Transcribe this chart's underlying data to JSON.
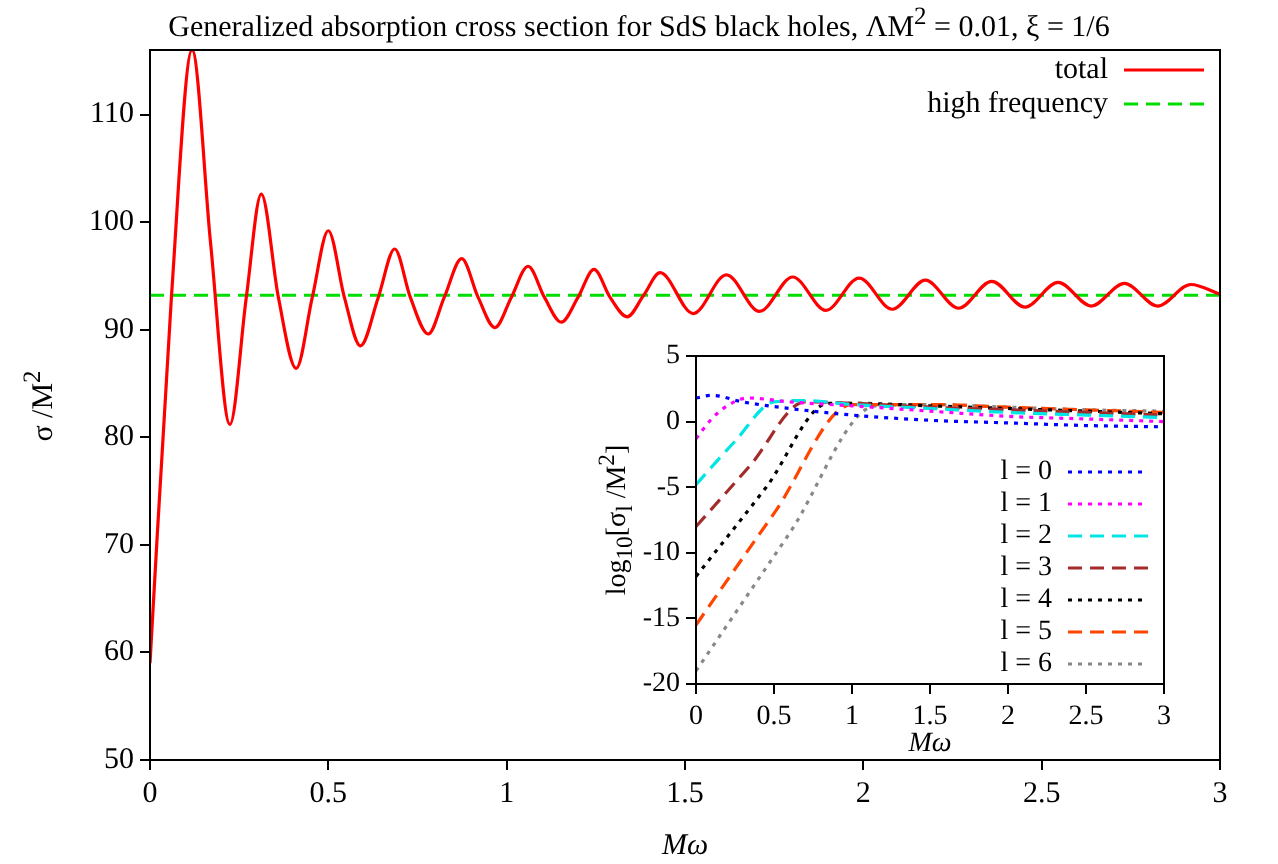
{
  "chart_data": [
    {
      "type": "line",
      "title": "Generalized absorption cross section for SdS black holes, ΛM$^{2}$ = 0.01, ξ = 1/6",
      "xlabel": "Mω",
      "ylabel": "σ /M$^{2}$",
      "xlim": [
        0,
        3
      ],
      "xticks": [
        0,
        0.5,
        1,
        1.5,
        2,
        2.5,
        3
      ],
      "ylim": [
        50,
        116
      ],
      "yticks": [
        50,
        60,
        70,
        80,
        90,
        100,
        110
      ],
      "legend": "top right",
      "series": [
        {
          "name": "total",
          "color": "#ff0000",
          "line_style": "solid",
          "x": [
            0,
            0.06,
            0.118,
            0.17,
            0.224,
            0.27,
            0.312,
            0.36,
            0.41,
            0.455,
            0.5,
            0.545,
            0.59,
            0.64,
            0.686,
            0.73,
            0.78,
            0.825,
            0.874,
            0.92,
            0.967,
            1.013,
            1.06,
            1.106,
            1.153,
            1.2,
            1.245,
            1.29,
            1.338,
            1.384,
            1.43,
            1.523,
            1.616,
            1.709,
            1.802,
            1.895,
            1.988,
            2.081,
            2.174,
            2.267,
            2.36,
            2.453,
            2.546,
            2.639,
            2.732,
            2.825,
            2.918,
            3
          ],
          "values": [
            59,
            93,
            116,
            98,
            81.2,
            93,
            102.6,
            93,
            86.4,
            93,
            99.2,
            93,
            88.5,
            93,
            97.5,
            93,
            89.6,
            93,
            96.6,
            93,
            90.2,
            93,
            95.9,
            93,
            90.7,
            93,
            95.6,
            93,
            91.2,
            93.2,
            95.3,
            91.5,
            95.1,
            91.7,
            94.9,
            91.8,
            94.8,
            91.9,
            94.6,
            92,
            94.5,
            92.1,
            94.4,
            92.2,
            94.3,
            92.2,
            94.2,
            93.3
          ]
        },
        {
          "name": "high frequency",
          "color": "#00dd00",
          "line_style": "dashed",
          "x": [
            0,
            3
          ],
          "values": [
            93.2,
            93.2
          ]
        }
      ]
    },
    {
      "type": "line",
      "xlabel": "Mω",
      "ylabel": "log$_{10}$[σ$_{l}$ /M$^{2}$]",
      "xlim": [
        0,
        3
      ],
      "xticks": [
        0,
        0.5,
        1,
        1.5,
        2,
        2.5,
        3
      ],
      "ylim": [
        -20,
        5
      ],
      "yticks": [
        -20,
        -15,
        -10,
        -5,
        0,
        5
      ],
      "legend": "bottom right",
      "series": [
        {
          "name": "l = 0",
          "color": "#0000ff",
          "line_style": "dotted",
          "x": [
            0,
            0.1,
            0.3,
            0.6,
            1,
            1.5,
            2,
            2.5,
            3
          ],
          "values": [
            1.8,
            2,
            1.5,
            1,
            0.5,
            0.1,
            -0.1,
            -0.3,
            -0.4
          ]
        },
        {
          "name": "l = 1",
          "color": "#ff00ff",
          "line_style": "dotted",
          "x": [
            0,
            0.1,
            0.2,
            0.33,
            0.6,
            1,
            1.5,
            2,
            2.5,
            3
          ],
          "values": [
            -1.3,
            0.2,
            1.2,
            1.8,
            1.5,
            1.2,
            0.8,
            0.4,
            0.2,
            0
          ]
        },
        {
          "name": "l = 2",
          "color": "#00e5e5",
          "line_style": "dashed",
          "x": [
            0,
            0.25,
            0.5,
            0.7,
            1,
            1.5,
            2,
            2.5,
            3
          ],
          "values": [
            -4.8,
            -1.5,
            1.5,
            1.6,
            1.3,
            1,
            0.7,
            0.5,
            0.3
          ]
        },
        {
          "name": "l = 3",
          "color": "#a52a2a",
          "line_style": "dashed",
          "x": [
            0,
            0.35,
            0.7,
            1,
            1.5,
            2,
            2.5,
            3
          ],
          "values": [
            -8,
            -3.3,
            1.5,
            1.4,
            1.1,
            0.9,
            0.7,
            0.5
          ]
        },
        {
          "name": "l = 4",
          "color": "#000000",
          "line_style": "dotted",
          "x": [
            0,
            0.45,
            0.85,
            1,
            1.5,
            2,
            2.5,
            3
          ],
          "values": [
            -11.8,
            -5,
            1.4,
            1.4,
            1.2,
            1,
            0.8,
            0.6
          ]
        },
        {
          "name": "l = 5",
          "color": "#ff4500",
          "line_style": "dashed",
          "x": [
            0,
            0.5,
            1,
            1.5,
            2,
            2.5,
            3
          ],
          "values": [
            -15.5,
            -7,
            1.3,
            1.3,
            1.1,
            0.9,
            0.7
          ]
        },
        {
          "name": "l = 6",
          "color": "#888888",
          "line_style": "dotted",
          "x": [
            0,
            0.6,
            1.15,
            1.5,
            2,
            2.5,
            3
          ],
          "values": [
            -19,
            -8.5,
            1.2,
            1.3,
            1.1,
            0.9,
            0.8
          ]
        }
      ]
    }
  ]
}
